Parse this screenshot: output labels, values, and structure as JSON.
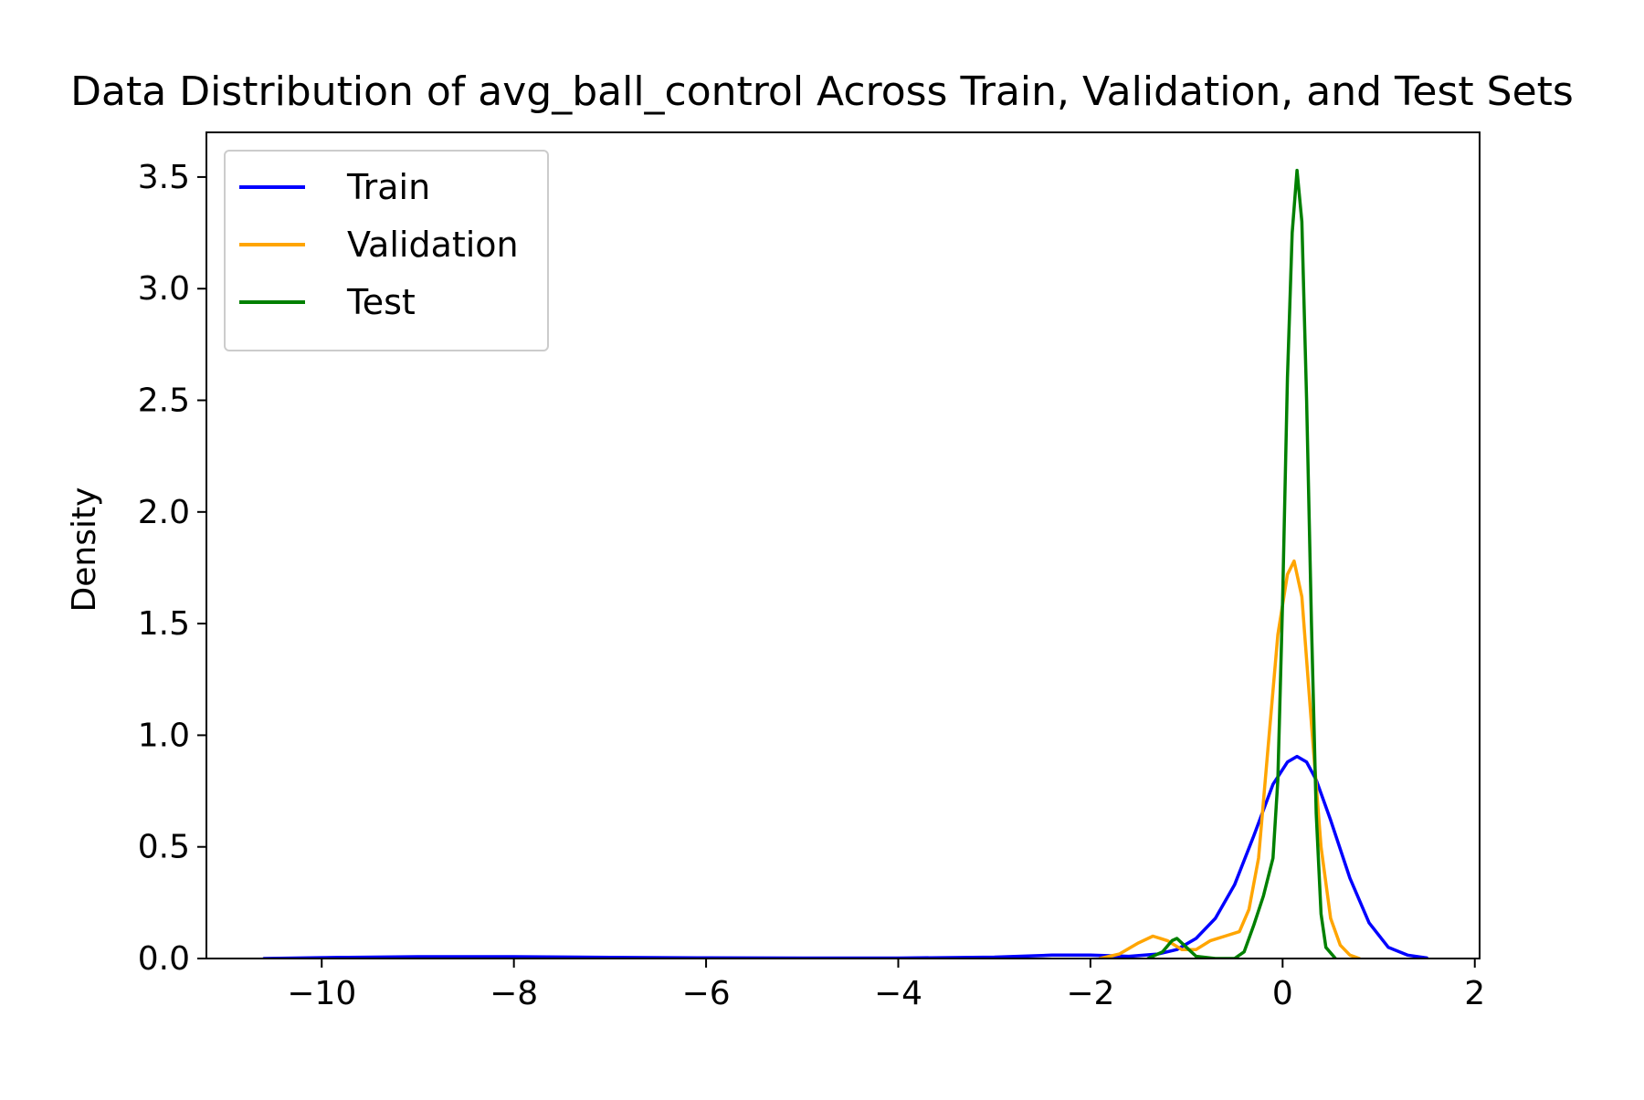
{
  "chart_data": {
    "type": "line",
    "title": "Data Distribution of avg_ball_control Across Train, Validation, and Test Sets",
    "xlabel": "",
    "ylabel": "Density",
    "xlim": [
      -11.2,
      2.05
    ],
    "ylim": [
      0,
      3.7
    ],
    "x_ticks": [
      -10,
      -8,
      -6,
      -4,
      -2,
      0,
      2
    ],
    "x_tick_labels": [
      "−10",
      "−8",
      "−6",
      "−4",
      "−2",
      "0",
      "2"
    ],
    "y_ticks": [
      0.0,
      0.5,
      1.0,
      1.5,
      2.0,
      2.5,
      3.0,
      3.5
    ],
    "y_tick_labels": [
      "0.0",
      "0.5",
      "1.0",
      "1.5",
      "2.0",
      "2.5",
      "3.0",
      "3.5"
    ],
    "grid": false,
    "legend_position": "upper-left",
    "series": [
      {
        "name": "Train",
        "color": "#0000ff",
        "x": [
          -10.6,
          -9.8,
          -9.0,
          -8.0,
          -7.0,
          -6.0,
          -5.0,
          -4.0,
          -3.0,
          -2.4,
          -2.0,
          -1.6,
          -1.3,
          -1.1,
          -0.9,
          -0.7,
          -0.5,
          -0.3,
          -0.1,
          0.05,
          0.15,
          0.25,
          0.35,
          0.5,
          0.7,
          0.9,
          1.1,
          1.3,
          1.5
        ],
        "y": [
          0.0,
          0.005,
          0.008,
          0.008,
          0.005,
          0.003,
          0.002,
          0.002,
          0.006,
          0.015,
          0.015,
          0.01,
          0.02,
          0.04,
          0.09,
          0.18,
          0.33,
          0.55,
          0.78,
          0.88,
          0.905,
          0.88,
          0.8,
          0.62,
          0.36,
          0.16,
          0.05,
          0.015,
          0.003
        ]
      },
      {
        "name": "Validation",
        "color": "#ffa500",
        "x": [
          -1.9,
          -1.7,
          -1.5,
          -1.35,
          -1.2,
          -1.05,
          -0.9,
          -0.75,
          -0.6,
          -0.45,
          -0.35,
          -0.25,
          -0.15,
          -0.05,
          0.05,
          0.12,
          0.2,
          0.3,
          0.4,
          0.5,
          0.6,
          0.7,
          0.8
        ],
        "y": [
          0.0,
          0.02,
          0.07,
          0.1,
          0.08,
          0.04,
          0.04,
          0.08,
          0.1,
          0.12,
          0.22,
          0.45,
          0.95,
          1.45,
          1.72,
          1.78,
          1.62,
          1.05,
          0.5,
          0.18,
          0.06,
          0.015,
          0.0
        ]
      },
      {
        "name": "Test",
        "color": "#008000",
        "x": [
          -1.4,
          -1.25,
          -1.15,
          -1.1,
          -1.0,
          -0.9,
          -0.7,
          -0.5,
          -0.4,
          -0.3,
          -0.2,
          -0.1,
          -0.05,
          0.0,
          0.05,
          0.1,
          0.15,
          0.2,
          0.25,
          0.3,
          0.35,
          0.4,
          0.45,
          0.55
        ],
        "y": [
          0.0,
          0.03,
          0.08,
          0.09,
          0.05,
          0.01,
          0.0,
          0.0,
          0.03,
          0.15,
          0.28,
          0.45,
          0.8,
          1.6,
          2.6,
          3.25,
          3.53,
          3.3,
          2.5,
          1.5,
          0.65,
          0.2,
          0.05,
          0.0
        ]
      }
    ]
  }
}
